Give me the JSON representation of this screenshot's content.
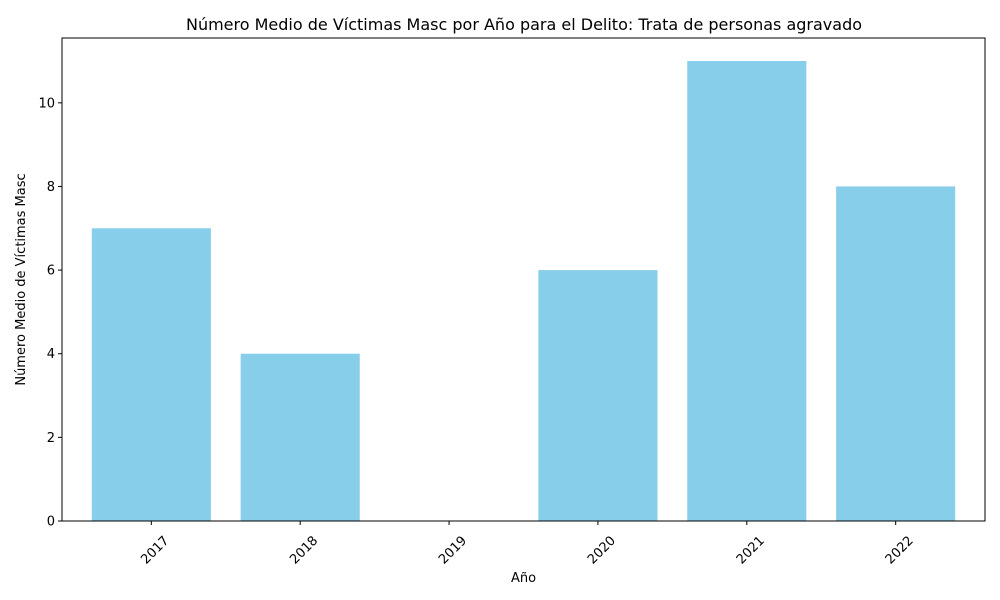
{
  "chart_data": {
    "type": "bar",
    "title": "Número Medio de Víctimas Masc por Año para el Delito: Trata de personas agravado",
    "xlabel": "Año",
    "ylabel": "Número Medio de Víctimas Masc",
    "categories": [
      "2017",
      "2018",
      "2019",
      "2020",
      "2021",
      "2022"
    ],
    "values": [
      7,
      4,
      0,
      6,
      11,
      8
    ],
    "ylim": [
      0,
      11.55
    ],
    "yticks": [
      0,
      2,
      4,
      6,
      8,
      10
    ],
    "ytick_labels": [
      "0",
      "2",
      "4",
      "6",
      "8",
      "10"
    ],
    "bar_color": "#87CEEB",
    "grid": false,
    "xtick_rotation": 45
  }
}
